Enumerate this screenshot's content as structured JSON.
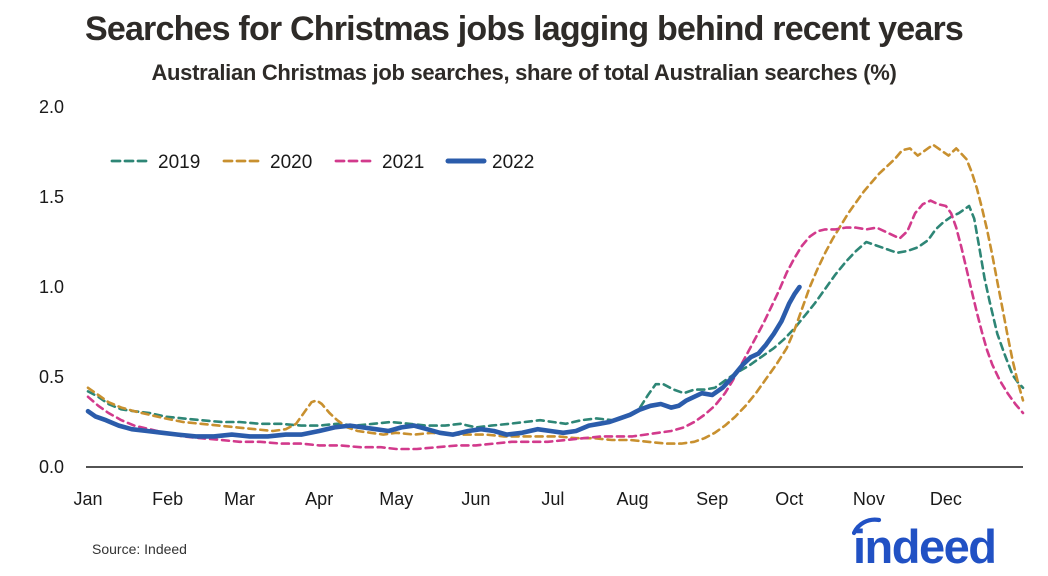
{
  "title": "Searches for Christmas jobs lagging behind recent years",
  "subtitle": "Australian Christmas job searches, share of total Australian searches (%)",
  "source": "Source: Indeed",
  "logo": {
    "text": "indeed",
    "color": "#2151c4"
  },
  "colors": {
    "axis": "#1a1a1a",
    "tick_text": "#1a1a1a",
    "title_text": "#2e2b28"
  },
  "chart_data": {
    "type": "line",
    "title": "Searches for Christmas jobs lagging behind recent years",
    "subtitle": "Australian Christmas job searches, share of total Australian searches (%)",
    "x_unit": "day_of_year",
    "x_range": [
      1,
      365
    ],
    "ylim": [
      0,
      2.0
    ],
    "grid": false,
    "legend_position": "top-left",
    "yticks": [
      0.0,
      0.5,
      1.0,
      1.5,
      2.0
    ],
    "ytick_labels": [
      "0.0",
      "0.5",
      "1.0",
      "1.5",
      "2.0"
    ],
    "month_labels": [
      "Jan",
      "Feb",
      "Mar",
      "Apr",
      "May",
      "Jun",
      "Jul",
      "Aug",
      "Sep",
      "Oct",
      "Nov",
      "Dec"
    ],
    "month_start_days": [
      1,
      32,
      60,
      91,
      121,
      152,
      182,
      213,
      244,
      274,
      305,
      335
    ],
    "series": [
      {
        "name": "2019",
        "color": "#2e8676",
        "style": "dashed",
        "width": 2.6,
        "points": [
          [
            1,
            0.42
          ],
          [
            5,
            0.39
          ],
          [
            9,
            0.35
          ],
          [
            14,
            0.32
          ],
          [
            19,
            0.31
          ],
          [
            25,
            0.3
          ],
          [
            31,
            0.28
          ],
          [
            38,
            0.27
          ],
          [
            45,
            0.26
          ],
          [
            53,
            0.25
          ],
          [
            60,
            0.25
          ],
          [
            68,
            0.24
          ],
          [
            76,
            0.24
          ],
          [
            84,
            0.23
          ],
          [
            91,
            0.23
          ],
          [
            98,
            0.24
          ],
          [
            105,
            0.23
          ],
          [
            112,
            0.24
          ],
          [
            119,
            0.25
          ],
          [
            126,
            0.24
          ],
          [
            133,
            0.23
          ],
          [
            140,
            0.23
          ],
          [
            146,
            0.24
          ],
          [
            152,
            0.22
          ],
          [
            158,
            0.23
          ],
          [
            165,
            0.24
          ],
          [
            171,
            0.25
          ],
          [
            177,
            0.26
          ],
          [
            182,
            0.25
          ],
          [
            187,
            0.24
          ],
          [
            193,
            0.26
          ],
          [
            199,
            0.27
          ],
          [
            205,
            0.26
          ],
          [
            210,
            0.28
          ],
          [
            215,
            0.31
          ],
          [
            219,
            0.4
          ],
          [
            222,
            0.46
          ],
          [
            225,
            0.46
          ],
          [
            229,
            0.43
          ],
          [
            233,
            0.41
          ],
          [
            237,
            0.43
          ],
          [
            241,
            0.43
          ],
          [
            245,
            0.44
          ],
          [
            249,
            0.48
          ],
          [
            253,
            0.52
          ],
          [
            258,
            0.56
          ],
          [
            263,
            0.61
          ],
          [
            268,
            0.66
          ],
          [
            272,
            0.71
          ],
          [
            276,
            0.77
          ],
          [
            280,
            0.84
          ],
          [
            284,
            0.91
          ],
          [
            288,
            0.99
          ],
          [
            292,
            1.07
          ],
          [
            296,
            1.14
          ],
          [
            300,
            1.2
          ],
          [
            304,
            1.25
          ],
          [
            308,
            1.23
          ],
          [
            312,
            1.21
          ],
          [
            316,
            1.19
          ],
          [
            320,
            1.2
          ],
          [
            324,
            1.22
          ],
          [
            328,
            1.26
          ],
          [
            331,
            1.32
          ],
          [
            334,
            1.36
          ],
          [
            337,
            1.39
          ],
          [
            340,
            1.41
          ],
          [
            342,
            1.43
          ],
          [
            344,
            1.45
          ],
          [
            346,
            1.38
          ],
          [
            348,
            1.22
          ],
          [
            350,
            1.05
          ],
          [
            352,
            0.92
          ],
          [
            355,
            0.74
          ],
          [
            358,
            0.62
          ],
          [
            361,
            0.51
          ],
          [
            363,
            0.47
          ],
          [
            365,
            0.44
          ]
        ]
      },
      {
        "name": "2020",
        "color": "#c8902f",
        "style": "dashed",
        "width": 2.6,
        "points": [
          [
            1,
            0.44
          ],
          [
            5,
            0.4
          ],
          [
            9,
            0.36
          ],
          [
            14,
            0.33
          ],
          [
            19,
            0.31
          ],
          [
            25,
            0.29
          ],
          [
            31,
            0.27
          ],
          [
            38,
            0.25
          ],
          [
            45,
            0.24
          ],
          [
            52,
            0.23
          ],
          [
            59,
            0.22
          ],
          [
            66,
            0.21
          ],
          [
            73,
            0.2
          ],
          [
            78,
            0.21
          ],
          [
            82,
            0.24
          ],
          [
            85,
            0.3
          ],
          [
            88,
            0.36
          ],
          [
            90,
            0.37
          ],
          [
            92,
            0.35
          ],
          [
            95,
            0.3
          ],
          [
            98,
            0.26
          ],
          [
            102,
            0.22
          ],
          [
            106,
            0.2
          ],
          [
            111,
            0.19
          ],
          [
            116,
            0.18
          ],
          [
            121,
            0.19
          ],
          [
            128,
            0.18
          ],
          [
            135,
            0.19
          ],
          [
            142,
            0.18
          ],
          [
            149,
            0.18
          ],
          [
            156,
            0.18
          ],
          [
            163,
            0.17
          ],
          [
            170,
            0.17
          ],
          [
            177,
            0.17
          ],
          [
            184,
            0.17
          ],
          [
            191,
            0.16
          ],
          [
            198,
            0.16
          ],
          [
            205,
            0.15
          ],
          [
            212,
            0.15
          ],
          [
            219,
            0.14
          ],
          [
            226,
            0.13
          ],
          [
            232,
            0.13
          ],
          [
            237,
            0.14
          ],
          [
            241,
            0.16
          ],
          [
            245,
            0.19
          ],
          [
            249,
            0.23
          ],
          [
            253,
            0.28
          ],
          [
            257,
            0.34
          ],
          [
            261,
            0.41
          ],
          [
            265,
            0.49
          ],
          [
            269,
            0.57
          ],
          [
            273,
            0.66
          ],
          [
            276,
            0.76
          ],
          [
            279,
            0.88
          ],
          [
            282,
            1.0
          ],
          [
            285,
            1.1
          ],
          [
            288,
            1.19
          ],
          [
            291,
            1.27
          ],
          [
            294,
            1.34
          ],
          [
            297,
            1.41
          ],
          [
            300,
            1.47
          ],
          [
            303,
            1.53
          ],
          [
            306,
            1.58
          ],
          [
            309,
            1.63
          ],
          [
            312,
            1.67
          ],
          [
            315,
            1.71
          ],
          [
            318,
            1.76
          ],
          [
            321,
            1.77
          ],
          [
            324,
            1.73
          ],
          [
            327,
            1.76
          ],
          [
            330,
            1.79
          ],
          [
            333,
            1.76
          ],
          [
            336,
            1.73
          ],
          [
            339,
            1.77
          ],
          [
            341,
            1.74
          ],
          [
            343,
            1.71
          ],
          [
            345,
            1.64
          ],
          [
            347,
            1.55
          ],
          [
            349,
            1.44
          ],
          [
            351,
            1.32
          ],
          [
            353,
            1.18
          ],
          [
            355,
            1.03
          ],
          [
            357,
            0.88
          ],
          [
            359,
            0.73
          ],
          [
            361,
            0.59
          ],
          [
            363,
            0.47
          ],
          [
            365,
            0.37
          ]
        ]
      },
      {
        "name": "2021",
        "color": "#d23a8c",
        "style": "dashed",
        "width": 2.6,
        "points": [
          [
            1,
            0.39
          ],
          [
            5,
            0.34
          ],
          [
            9,
            0.3
          ],
          [
            14,
            0.26
          ],
          [
            19,
            0.23
          ],
          [
            25,
            0.21
          ],
          [
            31,
            0.19
          ],
          [
            38,
            0.17
          ],
          [
            45,
            0.16
          ],
          [
            53,
            0.15
          ],
          [
            60,
            0.14
          ],
          [
            68,
            0.14
          ],
          [
            76,
            0.13
          ],
          [
            84,
            0.13
          ],
          [
            91,
            0.12
          ],
          [
            99,
            0.12
          ],
          [
            107,
            0.11
          ],
          [
            115,
            0.11
          ],
          [
            121,
            0.1
          ],
          [
            129,
            0.1
          ],
          [
            137,
            0.11
          ],
          [
            145,
            0.12
          ],
          [
            152,
            0.12
          ],
          [
            159,
            0.13
          ],
          [
            166,
            0.14
          ],
          [
            173,
            0.14
          ],
          [
            180,
            0.14
          ],
          [
            187,
            0.15
          ],
          [
            194,
            0.16
          ],
          [
            201,
            0.17
          ],
          [
            208,
            0.17
          ],
          [
            213,
            0.17
          ],
          [
            218,
            0.18
          ],
          [
            223,
            0.19
          ],
          [
            228,
            0.2
          ],
          [
            233,
            0.22
          ],
          [
            237,
            0.25
          ],
          [
            241,
            0.29
          ],
          [
            245,
            0.34
          ],
          [
            249,
            0.41
          ],
          [
            252,
            0.48
          ],
          [
            255,
            0.56
          ],
          [
            258,
            0.64
          ],
          [
            261,
            0.72
          ],
          [
            264,
            0.8
          ],
          [
            267,
            0.89
          ],
          [
            270,
            0.98
          ],
          [
            273,
            1.08
          ],
          [
            276,
            1.16
          ],
          [
            279,
            1.23
          ],
          [
            282,
            1.28
          ],
          [
            285,
            1.31
          ],
          [
            288,
            1.32
          ],
          [
            292,
            1.32
          ],
          [
            296,
            1.33
          ],
          [
            300,
            1.33
          ],
          [
            304,
            1.32
          ],
          [
            308,
            1.33
          ],
          [
            311,
            1.31
          ],
          [
            314,
            1.29
          ],
          [
            317,
            1.27
          ],
          [
            320,
            1.31
          ],
          [
            323,
            1.41
          ],
          [
            326,
            1.46
          ],
          [
            329,
            1.48
          ],
          [
            332,
            1.46
          ],
          [
            335,
            1.45
          ],
          [
            337,
            1.41
          ],
          [
            339,
            1.33
          ],
          [
            341,
            1.22
          ],
          [
            343,
            1.1
          ],
          [
            345,
            0.98
          ],
          [
            347,
            0.86
          ],
          [
            349,
            0.75
          ],
          [
            351,
            0.65
          ],
          [
            353,
            0.57
          ],
          [
            356,
            0.48
          ],
          [
            359,
            0.41
          ],
          [
            362,
            0.35
          ],
          [
            365,
            0.3
          ]
        ]
      },
      {
        "name": "2022",
        "color": "#2b5cab",
        "style": "solid",
        "width": 4.6,
        "points": [
          [
            1,
            0.31
          ],
          [
            4,
            0.28
          ],
          [
            8,
            0.26
          ],
          [
            13,
            0.23
          ],
          [
            18,
            0.21
          ],
          [
            24,
            0.2
          ],
          [
            30,
            0.19
          ],
          [
            36,
            0.18
          ],
          [
            43,
            0.17
          ],
          [
            50,
            0.17
          ],
          [
            57,
            0.18
          ],
          [
            64,
            0.17
          ],
          [
            71,
            0.17
          ],
          [
            78,
            0.18
          ],
          [
            84,
            0.18
          ],
          [
            91,
            0.2
          ],
          [
            97,
            0.22
          ],
          [
            103,
            0.23
          ],
          [
            108,
            0.22
          ],
          [
            113,
            0.21
          ],
          [
            118,
            0.2
          ],
          [
            123,
            0.22
          ],
          [
            128,
            0.23
          ],
          [
            133,
            0.21
          ],
          [
            138,
            0.19
          ],
          [
            143,
            0.18
          ],
          [
            149,
            0.2
          ],
          [
            154,
            0.21
          ],
          [
            159,
            0.2
          ],
          [
            164,
            0.18
          ],
          [
            170,
            0.19
          ],
          [
            176,
            0.21
          ],
          [
            181,
            0.2
          ],
          [
            186,
            0.19
          ],
          [
            191,
            0.2
          ],
          [
            196,
            0.23
          ],
          [
            200,
            0.24
          ],
          [
            204,
            0.25
          ],
          [
            208,
            0.27
          ],
          [
            212,
            0.29
          ],
          [
            216,
            0.32
          ],
          [
            220,
            0.34
          ],
          [
            224,
            0.35
          ],
          [
            228,
            0.33
          ],
          [
            231,
            0.34
          ],
          [
            234,
            0.37
          ],
          [
            237,
            0.39
          ],
          [
            240,
            0.41
          ],
          [
            244,
            0.4
          ],
          [
            248,
            0.44
          ],
          [
            252,
            0.5
          ],
          [
            256,
            0.57
          ],
          [
            259,
            0.61
          ],
          [
            262,
            0.63
          ],
          [
            265,
            0.68
          ],
          [
            268,
            0.74
          ],
          [
            271,
            0.81
          ],
          [
            274,
            0.91
          ],
          [
            276,
            0.96
          ],
          [
            278,
            1.0
          ]
        ]
      }
    ]
  }
}
